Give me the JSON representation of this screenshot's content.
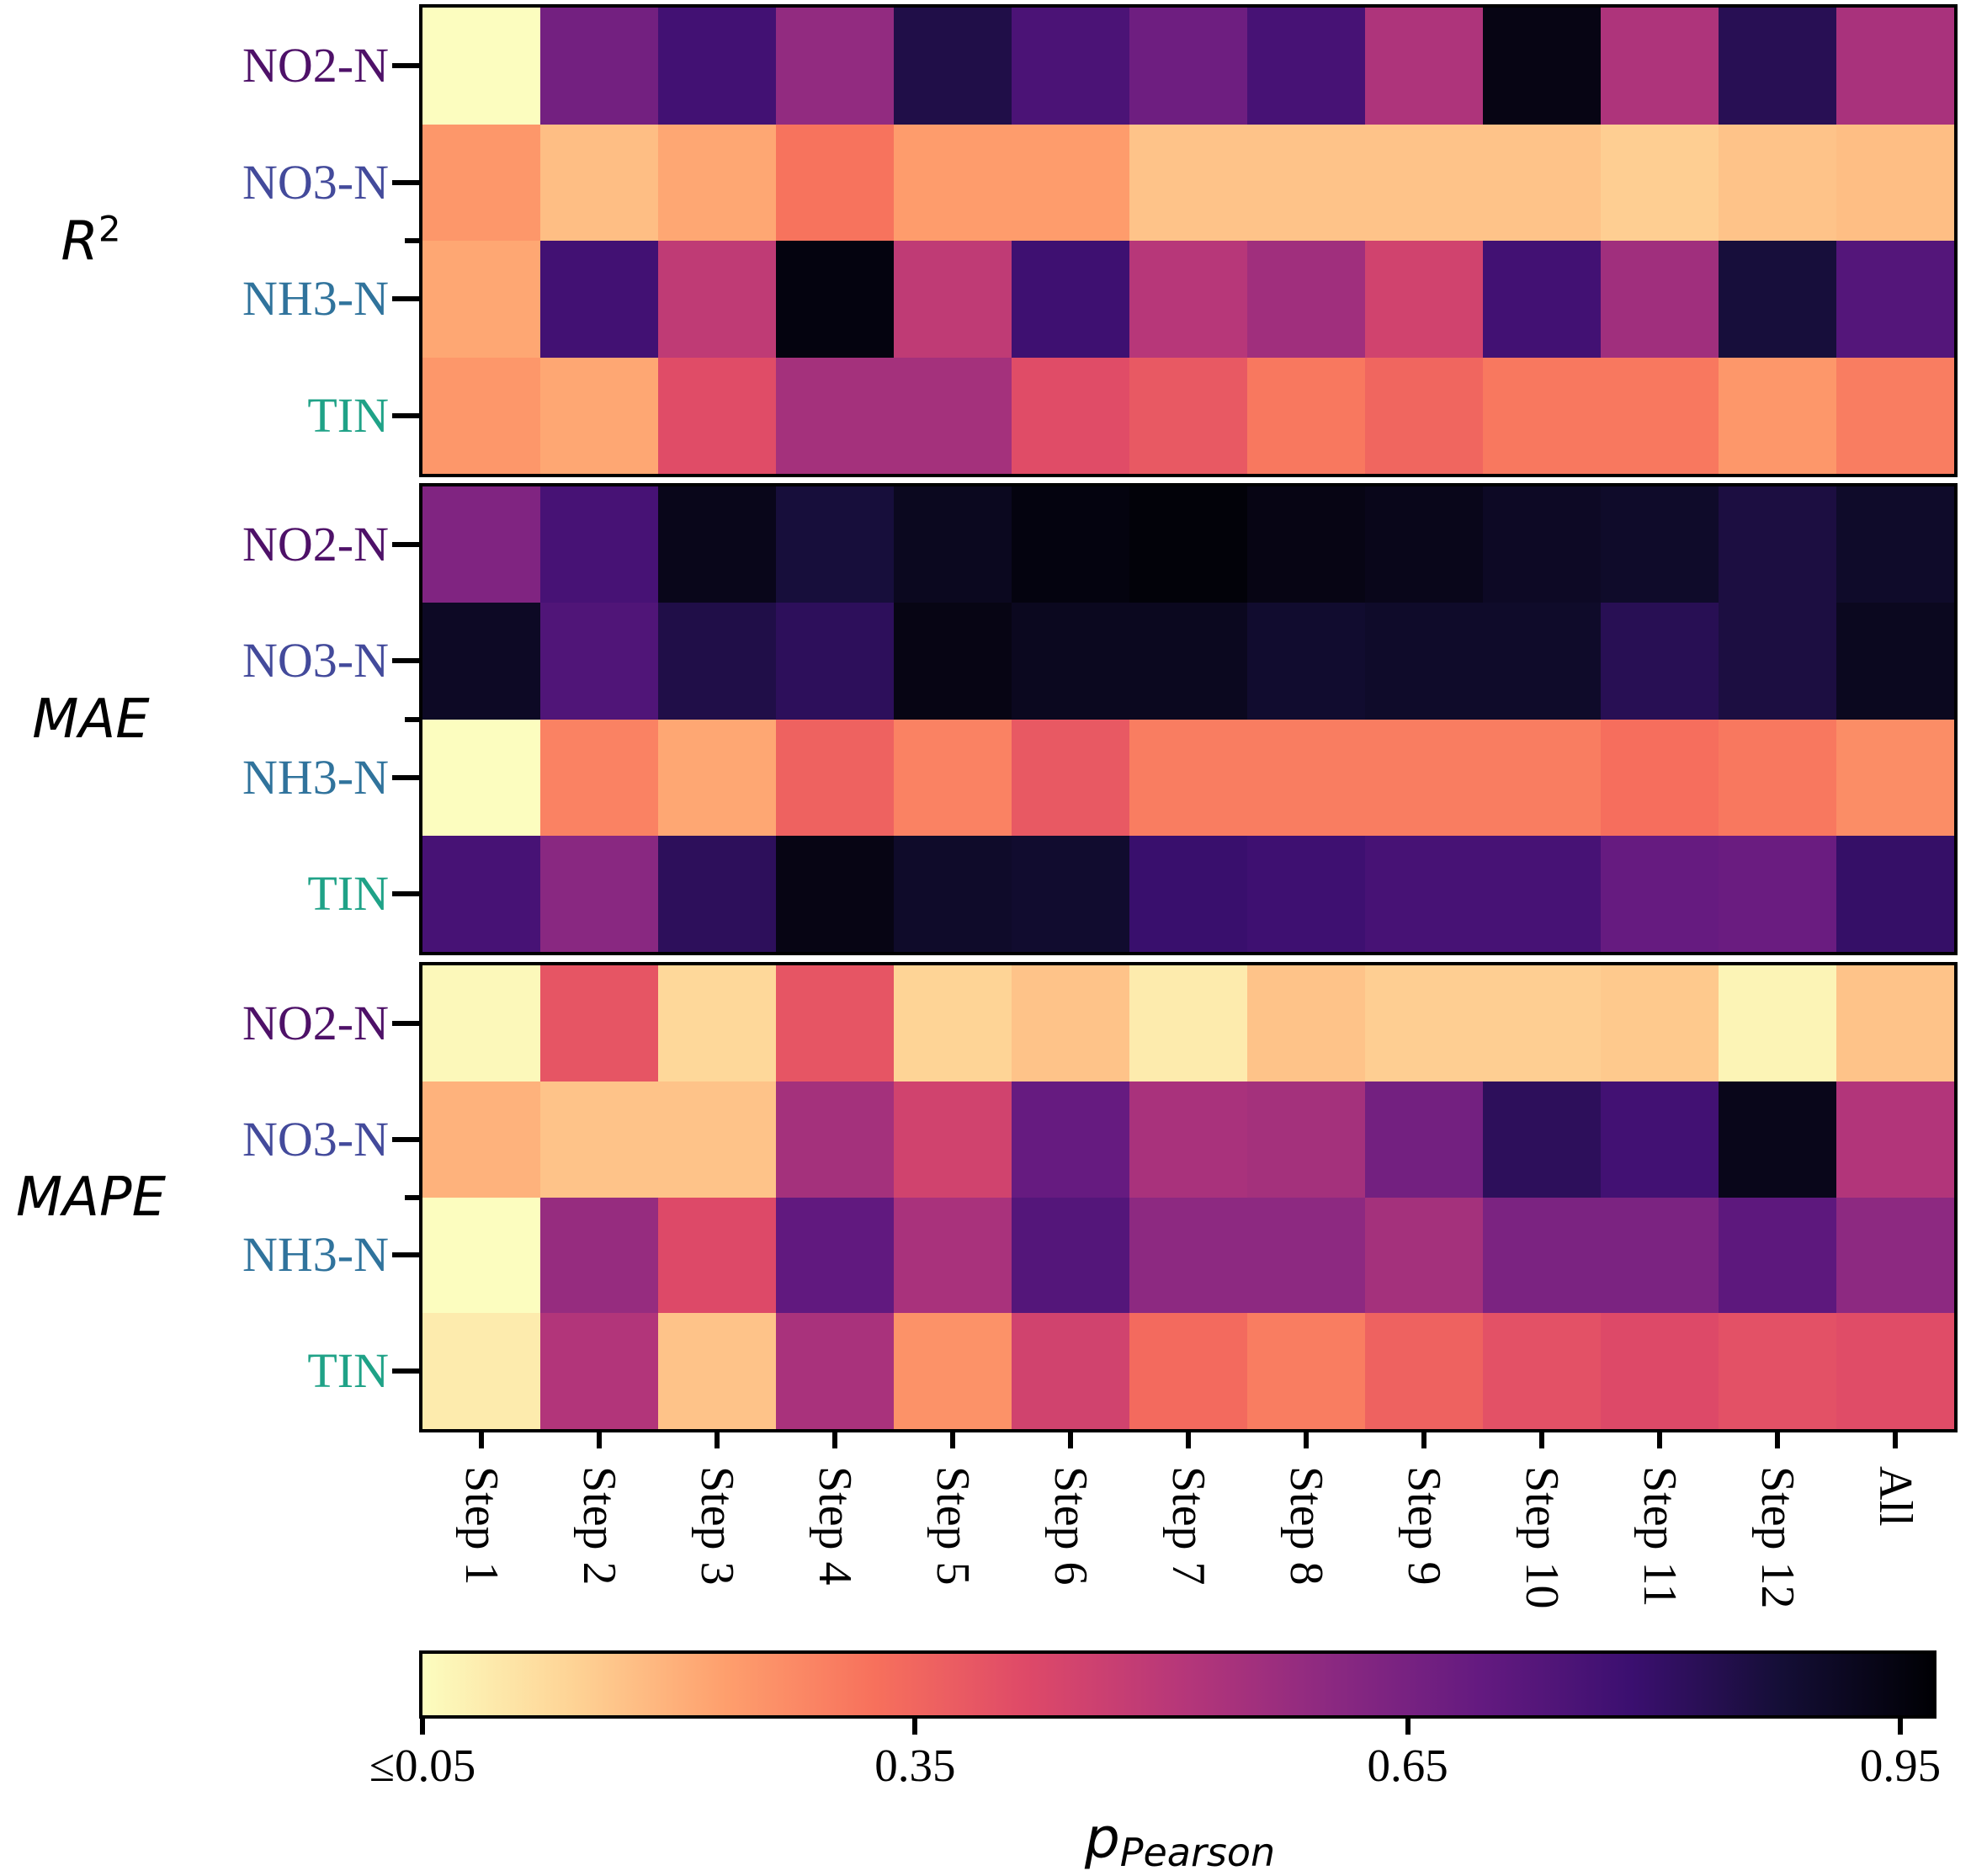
{
  "page": {
    "background": "#ffffff",
    "frame_color": "#000000"
  },
  "chart_data": {
    "type": "heatmap",
    "colormap": "magma_r",
    "vmin": 0.05,
    "vmax": 0.97,
    "grid": "off",
    "legend_position": "bottom-colorbar",
    "columns": [
      "Step 1",
      "Step 2",
      "Step 3",
      "Step 4",
      "Step 5",
      "Step 6",
      "Step 7",
      "Step 8",
      "Step 9",
      "Step 10",
      "Step 11",
      "Step 12",
      "All"
    ],
    "row_label_colors": {
      "NO2-N": "#4e1168",
      "NO3-N": "#434a9b",
      "NH3-N": "#30739c",
      "TIN": "#1fa287"
    },
    "blocks": [
      {
        "metric_main": "R",
        "metric_sup": "2",
        "rows": [
          {
            "species": "NO2-N",
            "values": [
              0.05,
              0.66,
              0.77,
              0.59,
              0.85,
              0.75,
              0.67,
              0.76,
              0.53,
              0.94,
              0.53,
              0.83,
              0.54
            ]
          },
          {
            "species": "NO3-N",
            "values": [
              0.25,
              0.18,
              0.22,
              0.32,
              0.24,
              0.24,
              0.17,
              0.17,
              0.17,
              0.17,
              0.15,
              0.17,
              0.18
            ]
          },
          {
            "species": "NH3-N",
            "values": [
              0.22,
              0.77,
              0.49,
              0.95,
              0.49,
              0.78,
              0.51,
              0.56,
              0.45,
              0.77,
              0.56,
              0.87,
              0.73
            ]
          },
          {
            "species": "TIN",
            "values": [
              0.25,
              0.22,
              0.41,
              0.55,
              0.55,
              0.41,
              0.38,
              0.31,
              0.35,
              0.31,
              0.31,
              0.25,
              0.3
            ]
          }
        ]
      },
      {
        "metric_main": "MAE",
        "metric_sup": "",
        "rows": [
          {
            "species": "NO2-N",
            "values": [
              0.63,
              0.76,
              0.93,
              0.87,
              0.92,
              0.95,
              0.96,
              0.94,
              0.93,
              0.91,
              0.9,
              0.86,
              0.9
            ]
          },
          {
            "species": "NO3-N",
            "values": [
              0.91,
              0.74,
              0.85,
              0.82,
              0.94,
              0.92,
              0.92,
              0.89,
              0.9,
              0.9,
              0.83,
              0.86,
              0.92
            ]
          },
          {
            "species": "NH3-N",
            "values": [
              0.05,
              0.29,
              0.22,
              0.36,
              0.29,
              0.38,
              0.3,
              0.3,
              0.3,
              0.3,
              0.33,
              0.31,
              0.27
            ]
          },
          {
            "species": "TIN",
            "values": [
              0.76,
              0.61,
              0.82,
              0.94,
              0.9,
              0.89,
              0.79,
              0.78,
              0.76,
              0.76,
              0.69,
              0.68,
              0.8
            ]
          }
        ]
      },
      {
        "metric_main": "MAPE",
        "metric_sup": "",
        "rows": [
          {
            "species": "NO2-N",
            "values": [
              0.06,
              0.39,
              0.13,
              0.39,
              0.14,
              0.17,
              0.09,
              0.17,
              0.15,
              0.15,
              0.16,
              0.07,
              0.17
            ]
          },
          {
            "species": "NO3-N",
            "values": [
              0.2,
              0.17,
              0.17,
              0.55,
              0.45,
              0.69,
              0.54,
              0.55,
              0.66,
              0.82,
              0.77,
              0.93,
              0.52
            ]
          },
          {
            "species": "NH3-N",
            "values": [
              0.05,
              0.58,
              0.42,
              0.7,
              0.54,
              0.73,
              0.6,
              0.6,
              0.55,
              0.64,
              0.64,
              0.71,
              0.6
            ]
          },
          {
            "species": "TIN",
            "values": [
              0.09,
              0.52,
              0.17,
              0.54,
              0.26,
              0.45,
              0.34,
              0.3,
              0.36,
              0.4,
              0.42,
              0.4,
              0.41
            ]
          }
        ]
      }
    ],
    "colorbar": {
      "label_main": "p",
      "label_sub": "Pearson",
      "ticks": [
        0.05,
        0.35,
        0.65,
        0.95
      ],
      "tick_labels": [
        "≤0.05",
        "0.35",
        "0.65",
        "0.95"
      ]
    }
  }
}
